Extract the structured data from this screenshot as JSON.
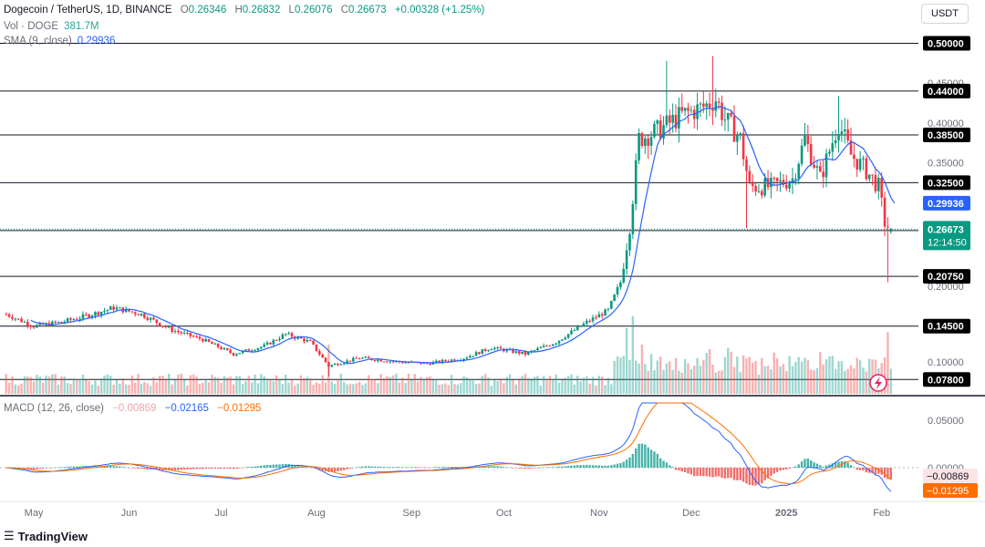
{
  "header": {
    "pair": "Dogecoin / TetherUS, 1D, BINANCE",
    "o_label": "O",
    "o": "0.26346",
    "h_label": "H",
    "h": "0.26832",
    "l_label": "L",
    "l": "0.26076",
    "c_label": "C",
    "c": "0.26673",
    "change": "+0.00328 (+1.25%)",
    "vol_label": "Vol · DOGE",
    "vol": "381.7M",
    "sma_label": "SMA (9, close)",
    "sma": "0.29936",
    "currency": "USDT"
  },
  "macd_legend": {
    "label": "MACD (12, 26, close)",
    "hist": "−0.00869",
    "macd": "−0.02165",
    "signal": "−0.01295"
  },
  "branding": "TradingView",
  "colors": {
    "up": "#089981",
    "down": "#f23645",
    "sma": "#2962ff",
    "macd_line": "#2962ff",
    "signal_line": "#ff6d00",
    "hist_up": "#26a69a",
    "hist_down": "#ef5350"
  },
  "chart_data": {
    "type": "candlestick",
    "y_axis_labels": [
      "0.45000",
      "0.40000",
      "0.35000",
      "0.20000",
      "0.10000"
    ],
    "y_range": [
      0.06,
      0.52
    ],
    "horizontal_levels": [
      "0.50000",
      "0.44000",
      "0.38500",
      "0.32500",
      "0.26500",
      "0.20750",
      "0.14500",
      "0.07800"
    ],
    "current_price": "0.26673",
    "countdown": "12:14:50",
    "sma_value_label": "0.29936",
    "x_labels": [
      "May",
      "Jun",
      "Jul",
      "Aug",
      "Sep",
      "Oct",
      "Nov",
      "Dec",
      "2025",
      "Feb"
    ],
    "macd_axis_labels": [
      "0.05000",
      "0.00000"
    ],
    "macd_value_labels": [
      "−0.00869",
      "−0.01295"
    ],
    "price_anchors": [
      [
        "2024-04-22",
        0.16
      ],
      [
        "2024-05-01",
        0.145
      ],
      [
        "2024-05-10",
        0.15
      ],
      [
        "2024-05-20",
        0.16
      ],
      [
        "2024-05-27",
        0.168
      ],
      [
        "2024-06-05",
        0.16
      ],
      [
        "2024-06-15",
        0.14
      ],
      [
        "2024-06-25",
        0.128
      ],
      [
        "2024-07-05",
        0.11
      ],
      [
        "2024-07-15",
        0.12
      ],
      [
        "2024-07-22",
        0.135
      ],
      [
        "2024-07-30",
        0.125
      ],
      [
        "2024-08-05",
        0.095
      ],
      [
        "2024-08-15",
        0.105
      ],
      [
        "2024-08-28",
        0.1
      ],
      [
        "2024-09-06",
        0.098
      ],
      [
        "2024-09-18",
        0.105
      ],
      [
        "2024-09-27",
        0.118
      ],
      [
        "2024-10-08",
        0.11
      ],
      [
        "2024-10-18",
        0.125
      ],
      [
        "2024-10-28",
        0.15
      ],
      [
        "2024-11-04",
        0.165
      ],
      [
        "2024-11-08",
        0.2
      ],
      [
        "2024-11-11",
        0.27
      ],
      [
        "2024-11-14",
        0.38
      ],
      [
        "2024-11-20",
        0.39
      ],
      [
        "2024-11-28",
        0.41
      ],
      [
        "2024-12-05",
        0.42
      ],
      [
        "2024-12-09",
        0.43
      ],
      [
        "2024-12-12",
        0.405
      ],
      [
        "2024-12-17",
        0.38
      ],
      [
        "2024-12-20",
        0.32
      ],
      [
        "2024-12-27",
        0.32
      ],
      [
        "2025-01-03",
        0.33
      ],
      [
        "2025-01-07",
        0.38
      ],
      [
        "2025-01-12",
        0.33
      ],
      [
        "2025-01-18",
        0.4
      ],
      [
        "2025-01-22",
        0.36
      ],
      [
        "2025-01-27",
        0.34
      ],
      [
        "2025-01-31",
        0.32
      ],
      [
        "2025-02-02",
        0.275
      ],
      [
        "2025-02-04",
        0.267
      ]
    ],
    "volume_spikes": [
      [
        "2024-08-05",
        0.6
      ],
      [
        "2024-11-06",
        0.4
      ],
      [
        "2024-11-10",
        0.8
      ],
      [
        "2024-11-12",
        0.95
      ],
      [
        "2024-11-15",
        0.6
      ],
      [
        "2024-12-06",
        0.5
      ],
      [
        "2024-12-20",
        0.45
      ],
      [
        "2025-01-19",
        0.4
      ],
      [
        "2025-02-03",
        0.75
      ]
    ]
  }
}
